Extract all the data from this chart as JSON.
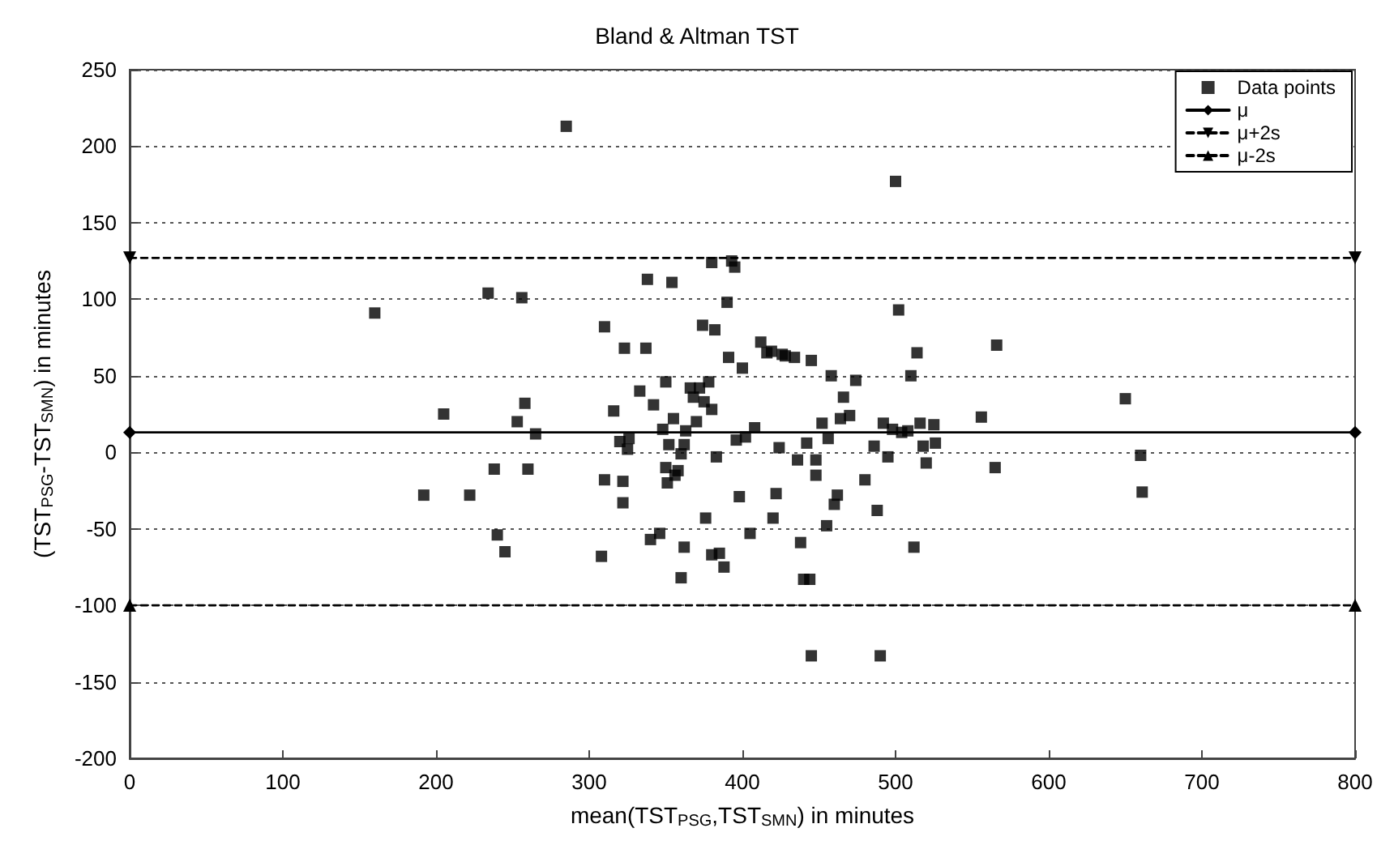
{
  "chart_data": {
    "type": "scatter",
    "title": "Bland & Altman TST",
    "xlabel": "mean(TST$_{PSG}$,TST$_{SMN}$) in minutes",
    "ylabel": "(TST$_{PSG}$-TST$_{SMN}$) in minutes",
    "xlim": [
      0,
      800
    ],
    "xticks": [
      0,
      100,
      200,
      300,
      400,
      500,
      600,
      700,
      800
    ],
    "ylim": [
      -200,
      250
    ],
    "yticks": [
      -200,
      -150,
      -100,
      -50,
      0,
      50,
      100,
      150,
      200,
      250
    ],
    "grid": "y",
    "legend": "top right",
    "series": [
      {
        "name": "Data points",
        "marker": "square",
        "color": "#000000",
        "x": [
          160,
          205,
          192,
          222,
          234,
          238,
          240,
          245,
          253,
          256,
          258,
          260,
          265,
          285,
          308,
          310,
          310,
          316,
          320,
          322,
          322,
          323,
          325,
          326,
          333,
          337,
          338,
          340,
          342,
          346,
          348,
          350,
          350,
          351,
          352,
          354,
          355,
          356,
          358,
          360,
          360,
          362,
          362,
          363,
          366,
          368,
          370,
          372,
          374,
          375,
          376,
          378,
          380,
          380,
          380,
          382,
          383,
          385,
          388,
          390,
          391,
          393,
          395,
          396,
          398,
          400,
          402,
          405,
          408,
          412,
          416,
          419,
          420,
          422,
          424,
          426,
          428,
          434,
          436,
          438,
          440,
          442,
          444,
          445,
          445,
          448,
          448,
          452,
          455,
          456,
          458,
          460,
          462,
          464,
          466,
          470,
          474,
          480,
          486,
          488,
          490,
          492,
          495,
          498,
          500,
          502,
          504,
          508,
          510,
          512,
          514,
          516,
          518,
          520,
          525,
          526,
          556,
          565,
          566,
          650,
          660,
          661
        ],
        "values": [
          91,
          25,
          -28,
          -28,
          104,
          -11,
          -54,
          -65,
          20,
          101,
          32,
          -11,
          12,
          213,
          -68,
          -18,
          82,
          27,
          7,
          -19,
          -33,
          68,
          2,
          9,
          40,
          68,
          113,
          -57,
          31,
          -53,
          15,
          46,
          -10,
          -20,
          5,
          111,
          22,
          -15,
          -12,
          -1,
          -82,
          -62,
          5,
          14,
          42,
          36,
          20,
          42,
          83,
          33,
          -43,
          46,
          124,
          28,
          -67,
          80,
          -3,
          -66,
          -75,
          98,
          62,
          125,
          121,
          8,
          -29,
          55,
          10,
          -53,
          16,
          72,
          65,
          66,
          -43,
          -27,
          3,
          64,
          63,
          62,
          -5,
          -59,
          -83,
          6,
          -83,
          60,
          -133,
          -15,
          -5,
          19,
          -48,
          9,
          50,
          -34,
          -28,
          22,
          36,
          24,
          47,
          -18,
          4,
          -38,
          -133,
          19,
          -3,
          15,
          177,
          93,
          13,
          14,
          50,
          -62,
          65,
          19,
          4,
          -7,
          18,
          6,
          23,
          -10,
          70,
          35,
          -2,
          -26
        ]
      },
      {
        "name": "μ",
        "type": "line",
        "marker": "diamond",
        "line_style": "solid",
        "color": "#000000",
        "x": [
          0,
          800
        ],
        "values": [
          13,
          13
        ]
      },
      {
        "name": "μ+2s",
        "type": "line",
        "marker": "triangle-down",
        "line_style": "dashed",
        "color": "#000000",
        "x": [
          0,
          800
        ],
        "values": [
          127,
          127
        ]
      },
      {
        "name": "μ-2s",
        "type": "line",
        "marker": "triangle",
        "line_style": "dashed",
        "color": "#000000",
        "x": [
          0,
          800
        ],
        "values": [
          -100,
          -100
        ]
      }
    ]
  }
}
